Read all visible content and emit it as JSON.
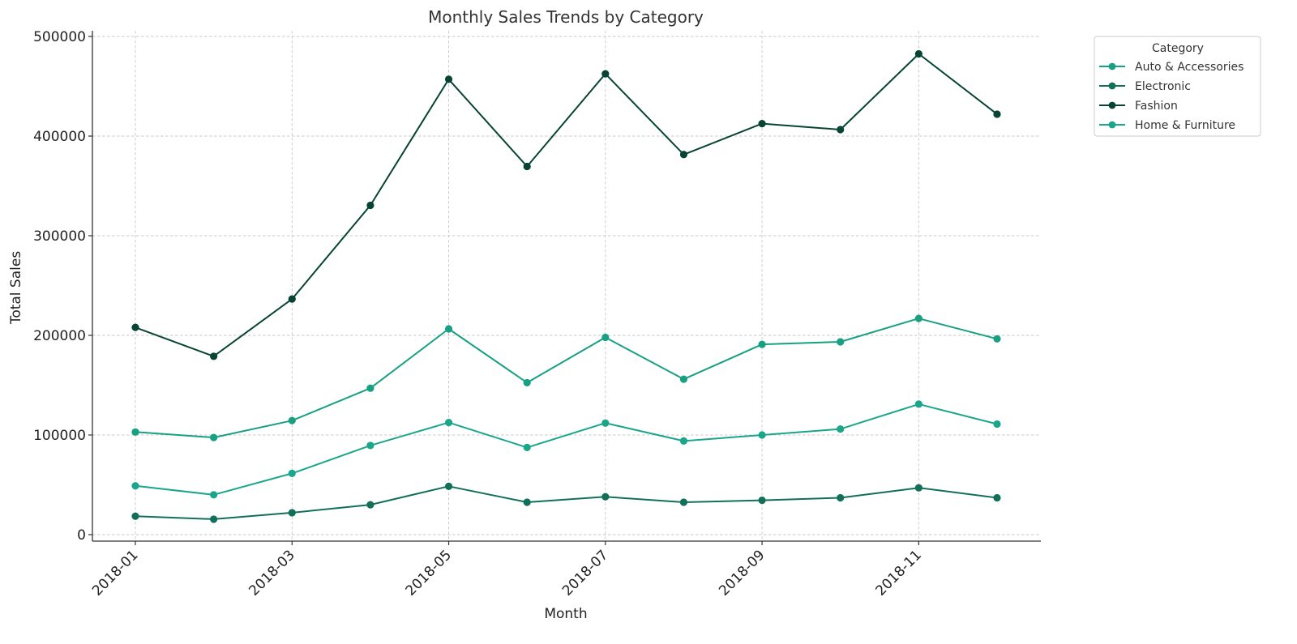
{
  "chart_data": {
    "type": "line",
    "title": "Monthly Sales Trends by Category",
    "xlabel": "Month",
    "ylabel": "Total Sales",
    "x": [
      "2018-01",
      "2018-02",
      "2018-03",
      "2018-04",
      "2018-05",
      "2018-06",
      "2018-07",
      "2018-08",
      "2018-09",
      "2018-10",
      "2018-11",
      "2018-12"
    ],
    "x_tick_labels": [
      "2018-01",
      "2018-03",
      "2018-05",
      "2018-07",
      "2018-09",
      "2018-11"
    ],
    "ylim": [
      -7000,
      505000
    ],
    "y_ticks": [
      0,
      100000,
      200000,
      300000,
      400000,
      500000
    ],
    "y_tick_labels": [
      "0",
      "100000",
      "200000",
      "300000",
      "400000",
      "500000"
    ],
    "grid": true,
    "legend": {
      "title": "Category",
      "placement": "outside-top-right"
    },
    "series": [
      {
        "name": "Auto & Accessories",
        "color": "#18a082",
        "values": [
          103000,
          97500,
          114500,
          147000,
          206500,
          152500,
          198000,
          156000,
          191000,
          193500,
          217000,
          196500
        ]
      },
      {
        "name": "Electronic",
        "color": "#12705a",
        "values": [
          18500,
          15500,
          22000,
          30000,
          48500,
          32500,
          38000,
          32500,
          34500,
          37000,
          47000,
          37000
        ]
      },
      {
        "name": "Fashion",
        "color": "#084434",
        "values": [
          208000,
          179000,
          236500,
          330500,
          457000,
          369500,
          462500,
          381500,
          412500,
          406500,
          482500,
          422000
        ]
      },
      {
        "name": "Home & Furniture",
        "color": "#1aa689",
        "values": [
          49000,
          40000,
          61500,
          89500,
          112500,
          87500,
          112000,
          94000,
          100000,
          106000,
          131000,
          111000
        ]
      }
    ]
  }
}
